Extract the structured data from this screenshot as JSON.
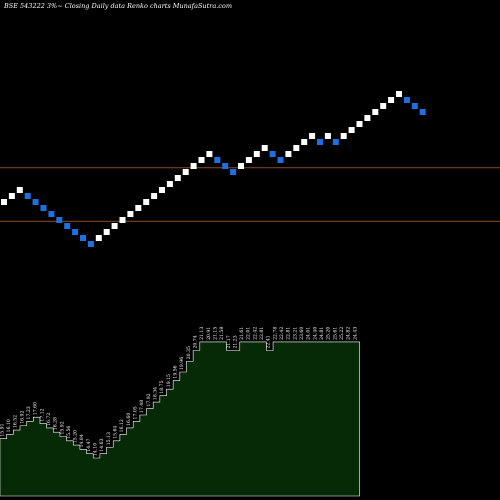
{
  "chart_data": {
    "type": "renko",
    "title": "BSE 543222  3%~  Closing Daily data  Renko  charts MunafaSutra.com",
    "colors": {
      "background": "#000000",
      "up_brick": "#ffffff",
      "down_brick": "#1e6fe0",
      "reference_line": "#8a4a2a",
      "volume_fill": "#062a06",
      "volume_edge": "#ffffff"
    },
    "bricks": [
      {
        "dir": "up",
        "level": 0
      },
      {
        "dir": "up",
        "level": 1
      },
      {
        "dir": "up",
        "level": 2
      },
      {
        "dir": "down",
        "level": 1
      },
      {
        "dir": "down",
        "level": 0
      },
      {
        "dir": "down",
        "level": -1
      },
      {
        "dir": "down",
        "level": -2
      },
      {
        "dir": "down",
        "level": -3
      },
      {
        "dir": "down",
        "level": -4
      },
      {
        "dir": "down",
        "level": -5
      },
      {
        "dir": "down",
        "level": -6
      },
      {
        "dir": "down",
        "level": -7
      },
      {
        "dir": "up",
        "level": -6
      },
      {
        "dir": "up",
        "level": -5
      },
      {
        "dir": "up",
        "level": -4
      },
      {
        "dir": "up",
        "level": -3
      },
      {
        "dir": "up",
        "level": -2
      },
      {
        "dir": "up",
        "level": -1
      },
      {
        "dir": "up",
        "level": 0
      },
      {
        "dir": "up",
        "level": 1
      },
      {
        "dir": "up",
        "level": 2
      },
      {
        "dir": "up",
        "level": 3
      },
      {
        "dir": "up",
        "level": 4
      },
      {
        "dir": "up",
        "level": 5
      },
      {
        "dir": "up",
        "level": 6
      },
      {
        "dir": "up",
        "level": 7
      },
      {
        "dir": "up",
        "level": 8
      },
      {
        "dir": "down",
        "level": 7
      },
      {
        "dir": "down",
        "level": 6
      },
      {
        "dir": "down",
        "level": 5
      },
      {
        "dir": "up",
        "level": 6
      },
      {
        "dir": "up",
        "level": 7
      },
      {
        "dir": "up",
        "level": 8
      },
      {
        "dir": "up",
        "level": 9
      },
      {
        "dir": "down",
        "level": 8
      },
      {
        "dir": "down",
        "level": 7
      },
      {
        "dir": "up",
        "level": 8
      },
      {
        "dir": "up",
        "level": 9
      },
      {
        "dir": "up",
        "level": 10
      },
      {
        "dir": "up",
        "level": 11
      },
      {
        "dir": "down",
        "level": 10
      },
      {
        "dir": "up",
        "level": 11
      },
      {
        "dir": "down",
        "level": 10
      },
      {
        "dir": "up",
        "level": 11
      },
      {
        "dir": "up",
        "level": 12
      },
      {
        "dir": "up",
        "level": 13
      },
      {
        "dir": "up",
        "level": 14
      },
      {
        "dir": "up",
        "level": 15
      },
      {
        "dir": "up",
        "level": 16
      },
      {
        "dir": "up",
        "level": 17
      },
      {
        "dir": "up",
        "level": 18
      },
      {
        "dir": "down",
        "level": 17
      },
      {
        "dir": "down",
        "level": 16
      },
      {
        "dir": "down",
        "level": 15
      }
    ],
    "reference_lines": [
      {
        "level": 5.7
      },
      {
        "level": -3.2
      }
    ],
    "bottom_labels": [
      "15.91",
      "16.04",
      "16.21",
      "16.52",
      "16.92",
      "17.23",
      "17.69",
      "17.29",
      "16.71",
      "16.58",
      "16.06",
      "15.52",
      "15.12",
      "14.74",
      "14.22",
      "13.88",
      "13.61",
      "13.52",
      "13.46",
      "13.21",
      "13.07",
      "12.67",
      "12.50",
      "12.77",
      "12.98",
      "13.04",
      "13.26",
      "13.60",
      "13.98",
      "14.32",
      "14.62",
      "14.92",
      "15.29",
      "15.54",
      "15.71",
      "15.80",
      "15.94",
      "16.02",
      "16.38",
      "16.46",
      "16.67",
      "16.91",
      "17.19",
      "19.89",
      "19.21",
      "19.72",
      "19.91",
      "20.09",
      "20.21",
      "20.27",
      "20.48",
      "20.63",
      "20.69",
      "20.72"
    ],
    "volume": [
      {
        "v": 9,
        "label": "15.91"
      },
      {
        "v": 11,
        "label": "16.10"
      },
      {
        "v": 13,
        "label": "16.52"
      },
      {
        "v": 15,
        "label": "16.92"
      },
      {
        "v": 17,
        "label": "17.23"
      },
      {
        "v": 19,
        "label": "17.60"
      },
      {
        "v": 16,
        "label": "17.12"
      },
      {
        "v": 14,
        "label": "16.72"
      },
      {
        "v": 12,
        "label": "16.28"
      },
      {
        "v": 10,
        "label": "15.92"
      },
      {
        "v": 8,
        "label": "15.56"
      },
      {
        "v": 6,
        "label": "15.20"
      },
      {
        "v": 4,
        "label": "14.84"
      },
      {
        "v": 2,
        "label": "14.47"
      },
      {
        "v": 0,
        "label": "14.10"
      },
      {
        "v": 2,
        "label": "14.63"
      },
      {
        "v": 5,
        "label": "15.13"
      },
      {
        "v": 8,
        "label": "15.64"
      },
      {
        "v": 11,
        "label": "16.12"
      },
      {
        "v": 14,
        "label": "16.60"
      },
      {
        "v": 17,
        "label": "17.05"
      },
      {
        "v": 20,
        "label": "17.48"
      },
      {
        "v": 23,
        "label": "17.92"
      },
      {
        "v": 26,
        "label": "18.34"
      },
      {
        "v": 29,
        "label": "18.75"
      },
      {
        "v": 32,
        "label": "19.15"
      },
      {
        "v": 36,
        "label": "19.56"
      },
      {
        "v": 40,
        "label": "19.96"
      },
      {
        "v": 45,
        "label": "20.35"
      },
      {
        "v": 50,
        "label": "20.74"
      },
      {
        "v": 54,
        "label": "21.13"
      },
      {
        "v": 54,
        "label": "20.91"
      },
      {
        "v": 54,
        "label": "21.15"
      },
      {
        "v": 54,
        "label": "21.58"
      },
      {
        "v": 50,
        "label": "21.17"
      },
      {
        "v": 50,
        "label": "21.23"
      },
      {
        "v": 54,
        "label": "21.61"
      },
      {
        "v": 54,
        "label": "22.01"
      },
      {
        "v": 54,
        "label": "22.42"
      },
      {
        "v": 54,
        "label": "22.81"
      },
      {
        "v": 50,
        "label": "22.41"
      },
      {
        "v": 54,
        "label": "22.78"
      },
      {
        "v": 54,
        "label": "22.42"
      },
      {
        "v": 54,
        "label": "22.81"
      },
      {
        "v": 54,
        "label": "23.21"
      },
      {
        "v": 54,
        "label": "23.60"
      },
      {
        "v": 54,
        "label": "24.01"
      },
      {
        "v": 54,
        "label": "24.40"
      },
      {
        "v": 54,
        "label": "24.81"
      },
      {
        "v": 54,
        "label": "25.20"
      },
      {
        "v": 54,
        "label": "25.61"
      },
      {
        "v": 54,
        "label": "25.22"
      },
      {
        "v": 54,
        "label": "24.82"
      },
      {
        "v": 54,
        "label": "24.43"
      }
    ]
  }
}
